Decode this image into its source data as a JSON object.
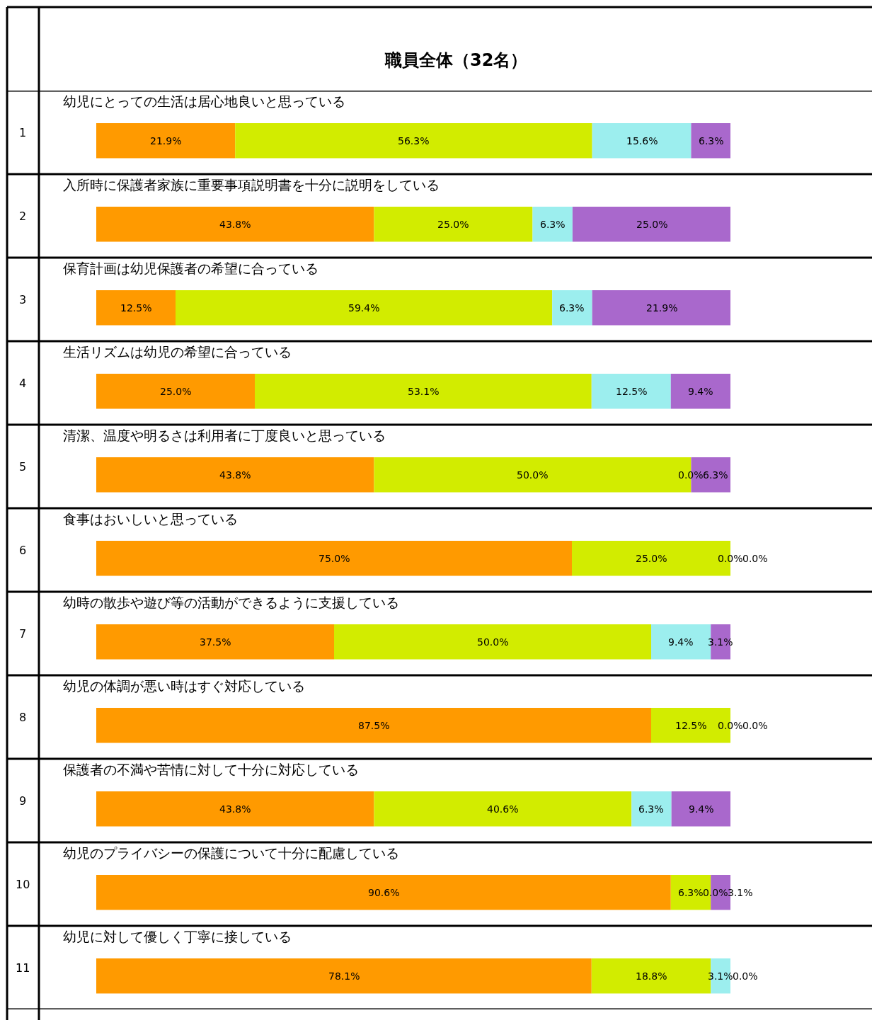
{
  "chart_data": {
    "type": "bar",
    "orientation": "horizontal",
    "stacked": true,
    "title": "職員全体（32名）",
    "categories": [
      "幼児にとっての生活は居心地良いと思っている",
      "入所時に保護者家族に重要事項説明書を十分に説明をしている",
      "保育計画は幼児保護者の希望に合っている",
      "生活リズムは幼児の希望に合っている",
      "清潔、温度や明るさは利用者に丁度良いと思っている",
      "食事はおいしいと思っている",
      "幼時の散歩や遊び等の活動ができるように支援している",
      "幼児の体調が悪い時はすぐ対応している",
      "保護者の不満や苦情に対して十分に対応している",
      "幼児のプライバシーの保護について十分に配慮している",
      "幼児に対して優しく丁寧に接している"
    ],
    "annotations": [
      "1",
      "2",
      "3",
      "4",
      "5",
      "6",
      "7",
      "8",
      "9",
      "10",
      "11"
    ],
    "xlim": [
      0,
      100
    ],
    "tick_labels": false,
    "series": [
      {
        "color": "#ff9a00",
        "values": [
          21.9,
          43.8,
          12.5,
          25.0,
          43.8,
          75.0,
          37.5,
          87.5,
          43.8,
          90.6,
          78.1
        ],
        "value_labels": [
          "21.9%",
          "43.8%",
          "12.5%",
          "25.0%",
          "43.8%",
          "75.0%",
          "37.5%",
          "87.5%",
          "43.8%",
          "90.6%",
          "78.1%"
        ]
      },
      {
        "color": "#d2ec00",
        "values": [
          56.3,
          25.0,
          59.4,
          53.1,
          50.0,
          25.0,
          50.0,
          12.5,
          40.6,
          6.3,
          18.8
        ],
        "value_labels": [
          "56.3%",
          "25.0%",
          "59.4%",
          "53.1%",
          "50.0%",
          "25.0%",
          "50.0%",
          "12.5%",
          "40.6%",
          "6.3%",
          "18.8%"
        ]
      },
      {
        "color": "#9ceeee",
        "values": [
          15.6,
          6.3,
          6.3,
          12.5,
          0.0,
          0.0,
          9.4,
          0.0,
          6.3,
          0.0,
          3.1
        ],
        "value_labels": [
          "15.6%",
          "6.3%",
          "6.3%",
          "12.5%",
          "0.0%",
          "0.0%",
          "9.4%",
          "0.0%",
          "6.3%",
          "0.0%",
          "3.1%"
        ]
      },
      {
        "color": "#a968cc",
        "values": [
          6.3,
          25.0,
          21.9,
          9.4,
          6.3,
          0.0,
          3.1,
          0.0,
          9.4,
          3.1,
          0.0
        ],
        "value_labels": [
          "6.3%",
          "25.0%",
          "21.9%",
          "9.4%",
          "6.3%",
          "0.0%",
          "3.1%",
          "0.0%",
          "9.4%",
          "3.1%",
          "0.0%"
        ]
      }
    ]
  }
}
